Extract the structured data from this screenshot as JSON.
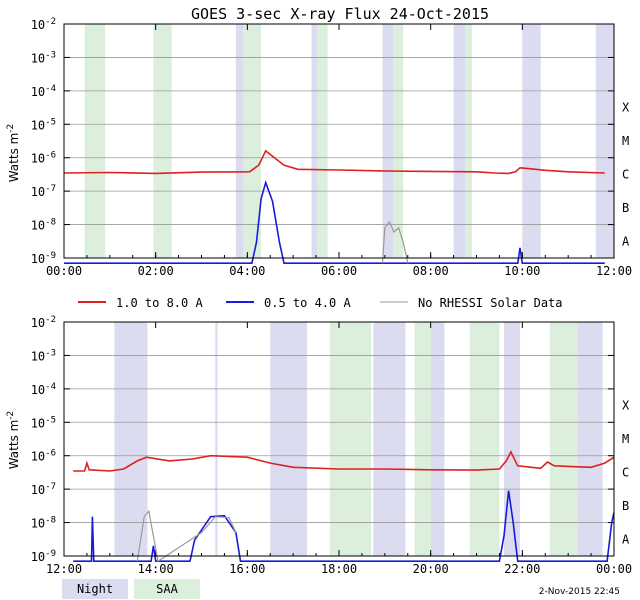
{
  "title": "GOES 3-sec X-ray Flux   24-Oct-2015",
  "ylabel": "Watts m",
  "ylabel_sup": "-2",
  "y_ticks": [
    {
      "base": "10",
      "exp": "-2"
    },
    {
      "base": "10",
      "exp": "-3"
    },
    {
      "base": "10",
      "exp": "-4"
    },
    {
      "base": "10",
      "exp": "-5"
    },
    {
      "base": "10",
      "exp": "-6"
    },
    {
      "base": "10",
      "exp": "-7"
    },
    {
      "base": "10",
      "exp": "-8"
    },
    {
      "base": "10",
      "exp": "-9"
    }
  ],
  "classes": [
    "X",
    "M",
    "C",
    "B",
    "A"
  ],
  "legend": {
    "long": "1.0 to 8.0 A",
    "short": "0.5 to 4.0 A",
    "nodata": "No RHESSI Solar Data"
  },
  "bottom_legend": {
    "night": "Night",
    "saa": "SAA"
  },
  "timestamp": "2-Nov-2015 22:45",
  "colors": {
    "long": "#dd2020",
    "short": "#1a1adc",
    "nodata": "#999999",
    "night": "#dcdcf0",
    "saa": "#dcefdc",
    "grid": "#9a9a9a"
  },
  "chart_data": [
    {
      "type": "line",
      "title": "GOES 3-sec X-ray Flux   24-Oct-2015",
      "xlabel": "",
      "ylabel": "Watts m-2",
      "x_unit": "hours UT",
      "xlim": [
        0,
        12
      ],
      "ylim": [
        1e-09,
        0.01
      ],
      "yscale": "log",
      "x_tick_labels": [
        "00:00",
        "02:00",
        "04:00",
        "06:00",
        "08:00",
        "10:00",
        "12:00"
      ],
      "night_bands": [
        [
          3.75,
          3.92
        ],
        [
          5.4,
          5.52
        ],
        [
          6.95,
          7.18
        ],
        [
          8.5,
          8.75
        ],
        [
          10.0,
          10.4
        ],
        [
          11.6,
          12.0
        ]
      ],
      "saa_bands": [
        [
          0.45,
          0.9
        ],
        [
          1.95,
          2.35
        ],
        [
          3.92,
          4.3
        ],
        [
          5.52,
          5.75
        ],
        [
          7.18,
          7.4
        ],
        [
          8.75,
          8.9
        ]
      ],
      "series": [
        {
          "name": "1.0 to 8.0 A",
          "color": "long",
          "points": [
            [
              0,
              3.5e-07
            ],
            [
              1,
              3.6e-07
            ],
            [
              2,
              3.4e-07
            ],
            [
              3,
              3.7e-07
            ],
            [
              4.05,
              3.8e-07
            ],
            [
              4.25,
              6e-07
            ],
            [
              4.4,
              1.6e-06
            ],
            [
              4.55,
              1.1e-06
            ],
            [
              4.8,
              6e-07
            ],
            [
              5.1,
              4.5e-07
            ],
            [
              6,
              4.3e-07
            ],
            [
              7,
              4e-07
            ],
            [
              8,
              3.9e-07
            ],
            [
              9,
              3.8e-07
            ],
            [
              9.4,
              3.5e-07
            ],
            [
              9.7,
              3.4e-07
            ],
            [
              9.85,
              3.8e-07
            ],
            [
              9.95,
              5e-07
            ],
            [
              10.1,
              4.8e-07
            ],
            [
              10.5,
              4.2e-07
            ],
            [
              11,
              3.8e-07
            ],
            [
              11.8,
              3.5e-07
            ]
          ]
        },
        {
          "name": "0.5 to 4.0 A",
          "color": "short",
          "points": [
            [
              0,
              7e-10
            ],
            [
              4.1,
              7e-10
            ],
            [
              4.2,
              3e-09
            ],
            [
              4.3,
              6e-08
            ],
            [
              4.4,
              1.8e-07
            ],
            [
              4.55,
              5e-08
            ],
            [
              4.7,
              3e-09
            ],
            [
              4.8,
              7e-10
            ],
            [
              9.9,
              7e-10
            ],
            [
              9.95,
              2e-09
            ],
            [
              10.0,
              7e-10
            ],
            [
              11.8,
              7e-10
            ]
          ]
        },
        {
          "name": "No RHESSI Solar Data",
          "color": "nodata",
          "points": [
            [
              6.95,
              7e-10
            ],
            [
              7.0,
              8e-09
            ],
            [
              7.1,
              1.2e-08
            ],
            [
              7.2,
              6e-09
            ],
            [
              7.3,
              8e-09
            ],
            [
              7.4,
              3e-09
            ],
            [
              7.5,
              7e-10
            ]
          ]
        }
      ]
    },
    {
      "type": "line",
      "title": "",
      "xlabel": "",
      "ylabel": "Watts m-2",
      "x_unit": "hours UT",
      "xlim": [
        12,
        24
      ],
      "ylim": [
        1e-09,
        0.01
      ],
      "yscale": "log",
      "x_tick_labels": [
        "12:00",
        "14:00",
        "16:00",
        "18:00",
        "20:00",
        "22:00",
        "00:00"
      ],
      "night_bands": [
        [
          13.1,
          13.82
        ],
        [
          15.3,
          15.35
        ],
        [
          16.5,
          17.3
        ],
        [
          18.75,
          19.45
        ],
        [
          20.0,
          20.3
        ],
        [
          21.6,
          21.95
        ],
        [
          23.2,
          23.75
        ]
      ],
      "saa_bands": [
        [
          17.8,
          18.7
        ],
        [
          19.65,
          20.0
        ],
        [
          20.85,
          21.5
        ],
        [
          22.6,
          23.2
        ]
      ],
      "series": [
        {
          "name": "1.0 to 8.0 A",
          "color": "long",
          "points": [
            [
              12.2,
              3.5e-07
            ],
            [
              12.45,
              3.5e-07
            ],
            [
              12.5,
              6e-07
            ],
            [
              12.55,
              3.8e-07
            ],
            [
              13,
              3.5e-07
            ],
            [
              13.3,
              4e-07
            ],
            [
              13.6,
              7e-07
            ],
            [
              13.8,
              9e-07
            ],
            [
              14.3,
              7e-07
            ],
            [
              14.8,
              8e-07
            ],
            [
              15.2,
              1e-06
            ],
            [
              16,
              9e-07
            ],
            [
              16.5,
              6e-07
            ],
            [
              17,
              4.5e-07
            ],
            [
              18,
              4e-07
            ],
            [
              19,
              4e-07
            ],
            [
              20,
              3.8e-07
            ],
            [
              21,
              3.7e-07
            ],
            [
              21.5,
              4e-07
            ],
            [
              21.65,
              7e-07
            ],
            [
              21.75,
              1.3e-06
            ],
            [
              21.9,
              5e-07
            ],
            [
              22.2,
              4.5e-07
            ],
            [
              22.4,
              4.2e-07
            ],
            [
              22.55,
              6.5e-07
            ],
            [
              22.7,
              5e-07
            ],
            [
              23,
              4.8e-07
            ],
            [
              23.5,
              4.5e-07
            ],
            [
              23.8,
              6e-07
            ],
            [
              24,
              9e-07
            ]
          ]
        },
        {
          "name": "0.5 to 4.0 A",
          "color": "short",
          "points": [
            [
              12.2,
              7e-10
            ],
            [
              12.6,
              7e-10
            ],
            [
              12.62,
              1.5e-08
            ],
            [
              12.65,
              7e-10
            ],
            [
              13.9,
              7e-10
            ],
            [
              13.95,
              2e-09
            ],
            [
              14,
              7e-10
            ],
            [
              14.75,
              7e-10
            ],
            [
              14.85,
              3e-09
            ],
            [
              15.2,
              1.5e-08
            ],
            [
              15.5,
              1.6e-08
            ],
            [
              15.75,
              5e-09
            ],
            [
              15.85,
              7e-10
            ],
            [
              21.5,
              7e-10
            ],
            [
              21.6,
              4e-09
            ],
            [
              21.7,
              9e-08
            ],
            [
              21.8,
              1e-08
            ],
            [
              21.9,
              7e-10
            ],
            [
              22.85,
              7e-10
            ],
            [
              23.85,
              7e-10
            ],
            [
              23.95,
              1e-08
            ],
            [
              24,
              2e-08
            ]
          ]
        },
        {
          "name": "No RHESSI Solar Data",
          "color": "nodata",
          "points": [
            [
              13.6,
              7e-10
            ],
            [
              13.75,
              1.5e-08
            ],
            [
              13.85,
              2.2e-08
            ],
            [
              13.95,
              4e-09
            ],
            [
              14.05,
              7e-10
            ],
            [
              15.0,
              5e-09
            ],
            [
              15.3,
              1.5e-08
            ],
            [
              15.6,
              1.4e-08
            ],
            [
              15.75,
              5e-09
            ]
          ]
        }
      ]
    }
  ]
}
